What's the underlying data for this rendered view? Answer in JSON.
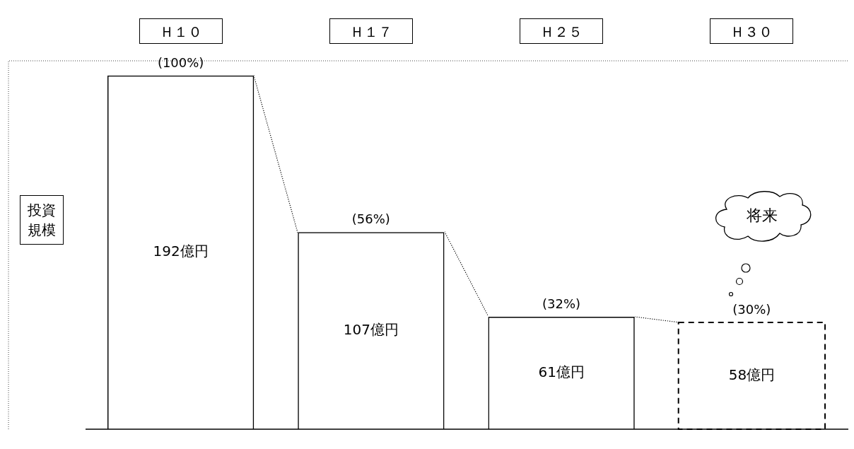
{
  "chart_data": {
    "type": "bar",
    "ylabel": "投資規模",
    "categories": [
      "Ｈ１０",
      "Ｈ１７",
      "Ｈ２５",
      "Ｈ３０"
    ],
    "ylim": [
      0,
      200
    ],
    "series": [
      {
        "color": "#000000",
        "values": [
          192,
          107,
          61,
          null
        ],
        "value_labels": [
          "192億円",
          "107億円",
          "61億円",
          null
        ],
        "line_style": "solid"
      },
      {
        "color": "#000000",
        "values": [
          null,
          null,
          null,
          58
        ],
        "value_labels": [
          null,
          null,
          null,
          "58億円"
        ],
        "line_style": "dashed"
      }
    ],
    "annotations": [
      {
        "text": "(100%)",
        "x": "Ｈ１０",
        "y": 192
      },
      {
        "text": "(56%)",
        "x": "Ｈ１７",
        "y": 107
      },
      {
        "text": "(32%)",
        "x": "Ｈ２５",
        "y": 61
      },
      {
        "text": "(30%)",
        "x": "Ｈ３０",
        "y": 58
      },
      "将来"
    ]
  }
}
